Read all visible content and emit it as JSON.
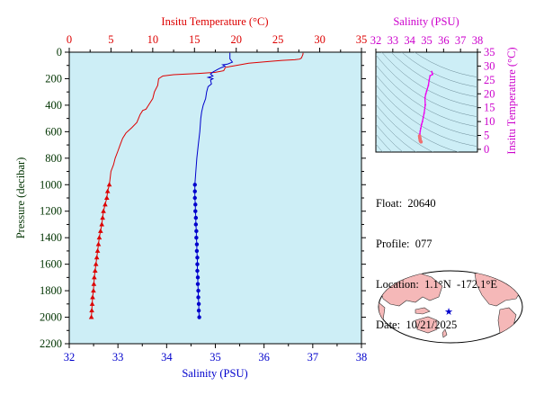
{
  "chart_data": [
    {
      "type": "line",
      "title": "",
      "x_top": {
        "label": "Insitu Temperature (°C)",
        "range": [
          0,
          35
        ],
        "ticks": [
          "0",
          "5",
          "10",
          "15",
          "20",
          "25",
          "30",
          "35"
        ],
        "color": "#dd0000"
      },
      "x_bottom": {
        "label": "Salinity (PSU)",
        "range": [
          32,
          38
        ],
        "ticks": [
          "32",
          "33",
          "34",
          "35",
          "36",
          "37",
          "38"
        ],
        "color": "#0000cc"
      },
      "y": {
        "label": "Pressure (decibar)",
        "range": [
          0,
          2200
        ],
        "inverted": true,
        "ticks": [
          "0",
          "200",
          "400",
          "600",
          "800",
          "1000",
          "1200",
          "1400",
          "1600",
          "1800",
          "2000",
          "2200"
        ],
        "color": "#003300"
      },
      "plot_background": "#cdeef6",
      "series": [
        {
          "axis": "top",
          "color": "#dd0000",
          "marker": "triangle",
          "marker_from_pressure": 1000,
          "points": [
            [
              28.0,
              5
            ],
            [
              28.0,
              15
            ],
            [
              27.9,
              30
            ],
            [
              27.8,
              45
            ],
            [
              27.6,
              52
            ],
            [
              27.0,
              57
            ],
            [
              25.5,
              62
            ],
            [
              24.0,
              70
            ],
            [
              21.5,
              83
            ],
            [
              20.0,
              100
            ],
            [
              18.7,
              115
            ],
            [
              18.5,
              140
            ],
            [
              17.5,
              152
            ],
            [
              15.5,
              160
            ],
            [
              12.5,
              170
            ],
            [
              11.2,
              180
            ],
            [
              10.7,
              200
            ],
            [
              10.6,
              250
            ],
            [
              10.2,
              300
            ],
            [
              10.0,
              350
            ],
            [
              9.5,
              400
            ],
            [
              9.2,
              430
            ],
            [
              8.8,
              440
            ],
            [
              8.5,
              470
            ],
            [
              8.1,
              530
            ],
            [
              7.5,
              570
            ],
            [
              6.8,
              610
            ],
            [
              6.4,
              650
            ],
            [
              6.1,
              700
            ],
            [
              5.8,
              750
            ],
            [
              5.5,
              800
            ],
            [
              5.3,
              850
            ],
            [
              5.0,
              900
            ],
            [
              4.9,
              950
            ],
            [
              4.8,
              1000
            ],
            [
              4.6,
              1050
            ],
            [
              4.5,
              1100
            ],
            [
              4.3,
              1150
            ],
            [
              4.1,
              1200
            ],
            [
              4.0,
              1250
            ],
            [
              3.9,
              1300
            ],
            [
              3.75,
              1350
            ],
            [
              3.6,
              1400
            ],
            [
              3.5,
              1450
            ],
            [
              3.4,
              1500
            ],
            [
              3.3,
              1550
            ],
            [
              3.2,
              1600
            ],
            [
              3.1,
              1650
            ],
            [
              3.0,
              1700
            ],
            [
              2.95,
              1750
            ],
            [
              2.9,
              1800
            ],
            [
              2.8,
              1850
            ],
            [
              2.75,
              1900
            ],
            [
              2.7,
              1950
            ],
            [
              2.65,
              2000
            ]
          ]
        },
        {
          "axis": "bottom",
          "color": "#0000cc",
          "marker": "circle",
          "marker_from_pressure": 1000,
          "points": [
            [
              35.3,
              5
            ],
            [
              35.3,
              50
            ],
            [
              35.35,
              75
            ],
            [
              35.25,
              90
            ],
            [
              35.15,
              95
            ],
            [
              35.2,
              105
            ],
            [
              35.1,
              120
            ],
            [
              35.05,
              130
            ],
            [
              35.0,
              140
            ],
            [
              34.95,
              150
            ],
            [
              34.9,
              165
            ],
            [
              34.95,
              180
            ],
            [
              34.85,
              190
            ],
            [
              34.95,
              200
            ],
            [
              34.9,
              210
            ],
            [
              34.92,
              240
            ],
            [
              34.85,
              260
            ],
            [
              34.82,
              300
            ],
            [
              34.8,
              350
            ],
            [
              34.75,
              400
            ],
            [
              34.72,
              450
            ],
            [
              34.7,
              500
            ],
            [
              34.68,
              600
            ],
            [
              34.65,
              700
            ],
            [
              34.62,
              800
            ],
            [
              34.6,
              900
            ],
            [
              34.58,
              1000
            ],
            [
              34.58,
              1050
            ],
            [
              34.58,
              1100
            ],
            [
              34.59,
              1150
            ],
            [
              34.59,
              1200
            ],
            [
              34.6,
              1250
            ],
            [
              34.6,
              1300
            ],
            [
              34.61,
              1350
            ],
            [
              34.61,
              1400
            ],
            [
              34.62,
              1450
            ],
            [
              34.62,
              1500
            ],
            [
              34.63,
              1550
            ],
            [
              34.63,
              1600
            ],
            [
              34.63,
              1650
            ],
            [
              34.64,
              1700
            ],
            [
              34.64,
              1750
            ],
            [
              34.65,
              1800
            ],
            [
              34.65,
              1850
            ],
            [
              34.66,
              1900
            ],
            [
              34.66,
              1950
            ],
            [
              34.67,
              2000
            ]
          ]
        }
      ]
    },
    {
      "type": "scatter",
      "title": "",
      "x": {
        "label": "Salinity (PSU)",
        "range": [
          32,
          38
        ],
        "ticks": [
          "32",
          "33",
          "34",
          "35",
          "36",
          "37",
          "38"
        ],
        "color": "#cc00cc"
      },
      "y": {
        "label": "Insitu Temperature (°C)",
        "range": [
          -1,
          35
        ],
        "ticks": [
          "0",
          "5",
          "10",
          "15",
          "20",
          "25",
          "30",
          "35"
        ],
        "color": "#cc00cc"
      },
      "plot_background": "#cdeef6",
      "series": [
        {
          "color": "#ee00ee",
          "points": [
            [
              35.3,
              28.0
            ],
            [
              35.35,
              27.0
            ],
            [
              35.2,
              26.5
            ],
            [
              35.15,
              25.0
            ],
            [
              35.1,
              23.0
            ],
            [
              35.0,
              21.0
            ],
            [
              34.95,
              20.0
            ],
            [
              34.9,
              18.5
            ],
            [
              34.92,
              16.0
            ],
            [
              34.85,
              13.0
            ],
            [
              34.8,
              11.5
            ],
            [
              34.75,
              10.0
            ],
            [
              34.7,
              9.0
            ],
            [
              34.65,
              7.5
            ],
            [
              34.62,
              6.5
            ],
            [
              34.6,
              5.5
            ]
          ]
        },
        {
          "color": "#f07070",
          "points": [
            [
              34.58,
              4.8
            ],
            [
              34.59,
              4.3
            ],
            [
              34.6,
              4.0
            ],
            [
              34.61,
              3.6
            ],
            [
              34.62,
              3.3
            ],
            [
              34.63,
              3.0
            ],
            [
              34.65,
              2.8
            ],
            [
              34.67,
              2.65
            ]
          ]
        }
      ]
    }
  ],
  "info": {
    "float": "Float:  20640",
    "profile": "Profile:  077",
    "location": "Location:  1.1°N  -172.1°E",
    "date": "Date:  10/21/2025"
  },
  "map": {
    "land_color": "#f5b8b8",
    "ocean_color": "#ffffff",
    "marker": "star",
    "marker_color": "#0000cc",
    "marker_position": {
      "lat": 1.1,
      "lon": -172.1
    }
  }
}
